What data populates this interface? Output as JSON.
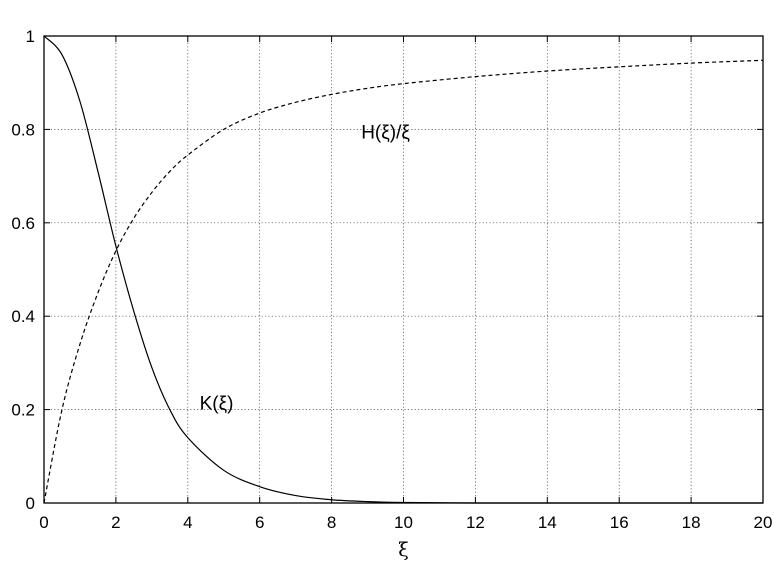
{
  "chart_data": {
    "type": "line",
    "title": "",
    "xlabel": "ξ",
    "ylabel": "",
    "xlim": [
      0,
      20
    ],
    "ylim": [
      0,
      1
    ],
    "grid": true,
    "x_ticks": [
      "0",
      "2",
      "4",
      "6",
      "8",
      "10",
      "12",
      "14",
      "16",
      "18",
      "20"
    ],
    "y_ticks": [
      "0",
      "0.2",
      "0.4",
      "0.6",
      "0.8",
      "1"
    ],
    "x": [
      0,
      0.5,
      1,
      1.5,
      2,
      2.5,
      3,
      3.5,
      4,
      5,
      6,
      7,
      8,
      9,
      10,
      12,
      14,
      16,
      18,
      20
    ],
    "series": [
      {
        "name": "K(ξ)",
        "style": "solid",
        "values": [
          1.0,
          0.96,
          0.86,
          0.71,
          0.55,
          0.41,
          0.29,
          0.2,
          0.14,
          0.07,
          0.035,
          0.016,
          0.007,
          0.003,
          0.001,
          0.0,
          0.0,
          0.0,
          0.0,
          0.0
        ]
      },
      {
        "name": "H(ξ)/ξ",
        "style": "dashed",
        "values": [
          0.0,
          0.2,
          0.34,
          0.45,
          0.54,
          0.61,
          0.665,
          0.71,
          0.745,
          0.8,
          0.835,
          0.858,
          0.875,
          0.888,
          0.898,
          0.913,
          0.925,
          0.934,
          0.942,
          0.948
        ]
      }
    ],
    "annotations": [
      {
        "text": "H(ξ)/ξ",
        "x": 9.5,
        "y": 0.78
      },
      {
        "text": "K(ξ)",
        "x": 4.8,
        "y": 0.2
      }
    ],
    "colors": {
      "line": "#000000",
      "grid": "#444444",
      "background": "#ffffff"
    }
  }
}
